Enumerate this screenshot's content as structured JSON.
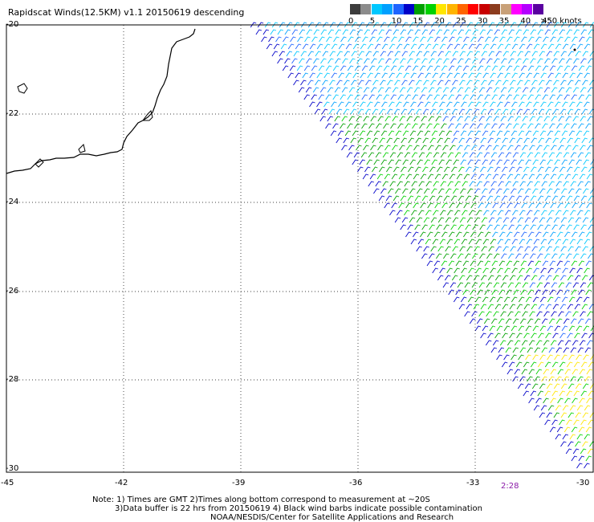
{
  "title": "Rapidscat Winds(12.5KM) v1.1 20150619 descending",
  "legend": {
    "units": ">50 knots",
    "colors": [
      "#3c3c3c",
      "#8c8c8c",
      "#00c8ff",
      "#00a0ff",
      "#1e64ff",
      "#0000c8",
      "#00a000",
      "#00d200",
      "#ffe600",
      "#ffb400",
      "#ff6400",
      "#ff0000",
      "#c80000",
      "#8c3c1e",
      "#c8a078",
      "#ff00ff",
      "#b400ff",
      "#5a00a0"
    ],
    "labels": [
      "0",
      "5",
      "10",
      "15",
      "20",
      "25",
      "30",
      "35",
      "40",
      "45"
    ]
  },
  "map": {
    "lon_range": [
      -45,
      -30
    ],
    "lat_range": [
      -30,
      -20
    ],
    "y_ticks": [
      "-20",
      "-22",
      "-24",
      "-26",
      "-28",
      "-30"
    ],
    "x_ticks": [
      "-45",
      "-42",
      "-39",
      "-36",
      "-33",
      "-30"
    ],
    "pass_time": "2:28",
    "grid": true
  },
  "notes": {
    "line1": "Note: 1) Times are GMT 2)Times along bottom correspond to measurement at ~20S",
    "line2": "3)Data buffer is 22 hrs from 20150619 4) Black wind barbs indicate possible contamination",
    "line3": "NOAA/NESDIS/Center for Satellite Applications and Research"
  }
}
